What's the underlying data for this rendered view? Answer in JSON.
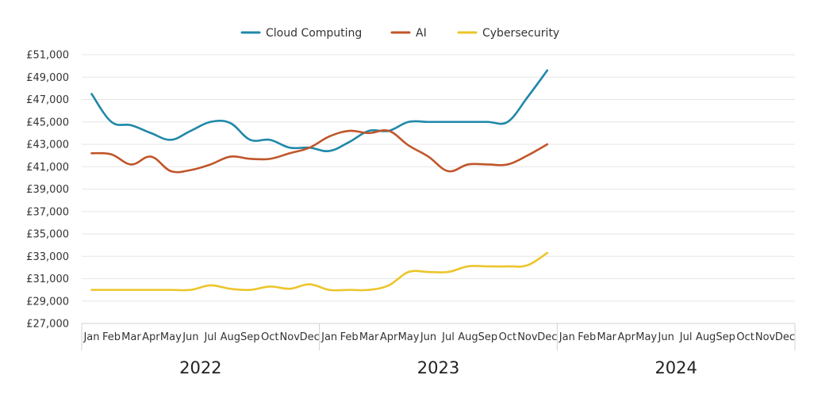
{
  "chart_data": {
    "type": "line",
    "title": "",
    "xlabel": "",
    "ylabel": "",
    "ylim": [
      27000,
      51000
    ],
    "y_ticks": [
      "£27,000",
      "£29,000",
      "£31,000",
      "£33,000",
      "£35,000",
      "£37,000",
      "£39,000",
      "£41,000",
      "£43,000",
      "£45,000",
      "£47,000",
      "£49,000",
      "£51,000"
    ],
    "grid": "horizontal",
    "legend_position": "top-center",
    "months": [
      "Jan",
      "Feb",
      "Mar",
      "Apr",
      "May",
      "Jun",
      "Jul",
      "Aug",
      "Sep",
      "Oct",
      "Nov",
      "Dec"
    ],
    "years": [
      "2022",
      "2023",
      "2024"
    ],
    "series": [
      {
        "name": "Cloud Computing",
        "color": "#1f88a8",
        "values": [
          47500,
          45000,
          44700,
          44000,
          43400,
          44200,
          45000,
          44900,
          43400,
          43400,
          42700,
          42700,
          42400,
          43200,
          44200,
          44200,
          45000,
          45000,
          45000,
          45000,
          45000,
          45000,
          47200,
          49600
        ]
      },
      {
        "name": "AI",
        "color": "#c0552a",
        "values": [
          42200,
          42100,
          41200,
          41900,
          40600,
          40700,
          41200,
          41900,
          41700,
          41700,
          42200,
          42700,
          43700,
          44200,
          44000,
          44200,
          42900,
          41900,
          40600,
          41200,
          41200,
          41200,
          42000,
          43000
        ]
      },
      {
        "name": "Cybersecurity",
        "color": "#ecc52a",
        "values": [
          30000,
          30000,
          30000,
          30000,
          30000,
          30000,
          30400,
          30100,
          30000,
          30300,
          30100,
          30500,
          30000,
          30000,
          30000,
          30400,
          31600,
          31600,
          31600,
          32100,
          32100,
          32100,
          32200,
          33300
        ]
      }
    ]
  }
}
